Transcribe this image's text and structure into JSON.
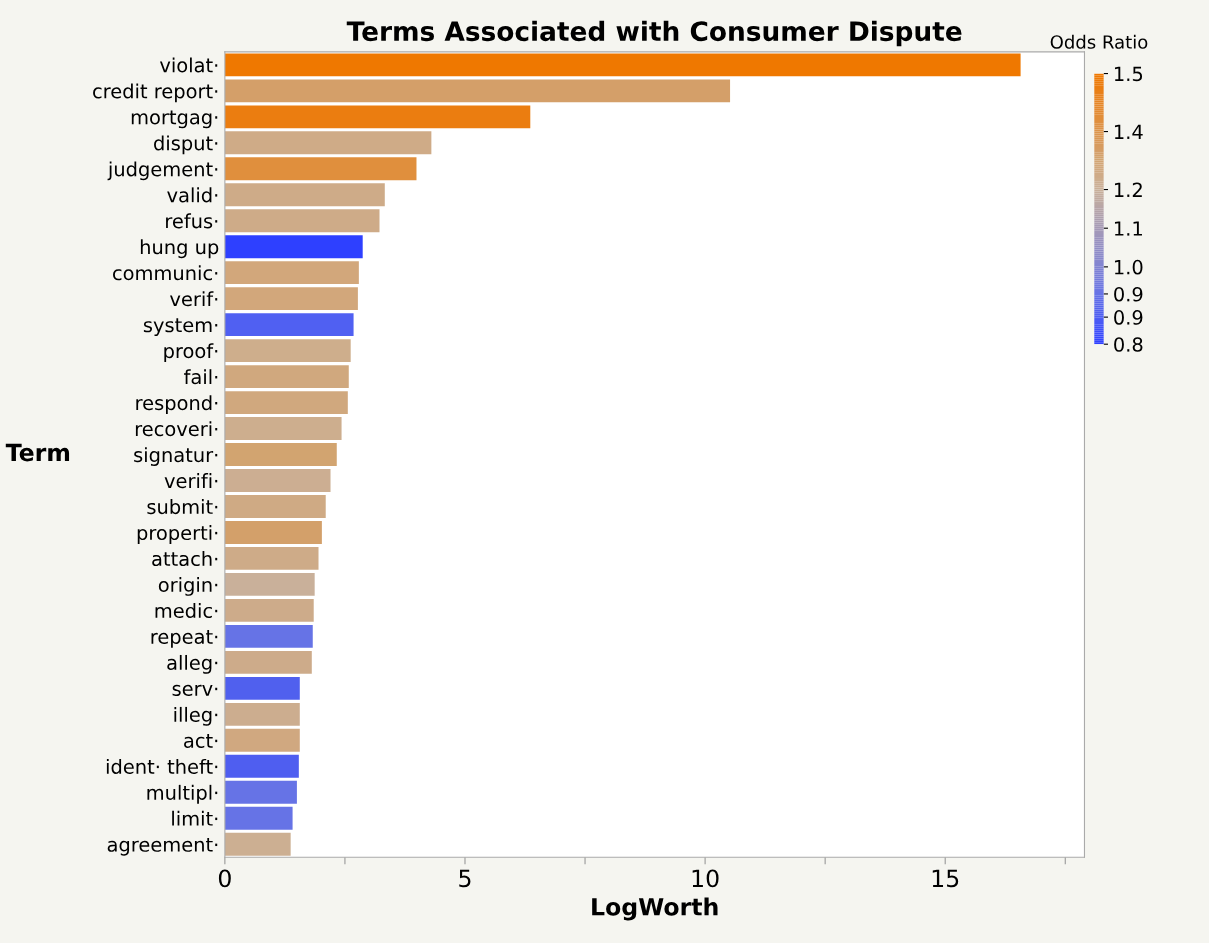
{
  "chart_data": {
    "type": "bar",
    "orientation": "horizontal",
    "title": "Terms Associated with Consumer Dispute",
    "xlabel": "LogWorth",
    "ylabel": "Term",
    "clabel": "Odds Ratio",
    "categories": [
      "violat·",
      "credit report·",
      "mortgag·",
      "disput·",
      "judgement·",
      "valid·",
      "refus·",
      "hung up",
      "communic·",
      "verif·",
      "system·",
      "proof·",
      "fail·",
      "respond·",
      "recoveri·",
      "signatur·",
      "verifi·",
      "submit·",
      "properti·",
      "attach·",
      "origin·",
      "medic·",
      "repeat·",
      "alleg·",
      "serv·",
      "illeg·",
      "act·",
      "ident· theft·",
      "multipl·",
      "limit·",
      "agreement·"
    ],
    "values": [
      16.57,
      10.52,
      6.36,
      4.3,
      3.99,
      3.33,
      3.22,
      2.87,
      2.79,
      2.77,
      2.68,
      2.62,
      2.58,
      2.56,
      2.43,
      2.33,
      2.2,
      2.1,
      2.02,
      1.95,
      1.87,
      1.85,
      1.83,
      1.81,
      1.56,
      1.56,
      1.56,
      1.54,
      1.5,
      1.41,
      1.37
    ],
    "colors": [
      "#ef7800",
      "#d49f69",
      "#eb7d10",
      "#cfab87",
      "#e08f3d",
      "#ceab88",
      "#ceab88",
      "#2e40ff",
      "#d2a77b",
      "#d2a77b",
      "#5060f2",
      "#ceae8c",
      "#d0a87e",
      "#d0a87e",
      "#cdae8e",
      "#d2a470",
      "#ccae92",
      "#cfaa84",
      "#d3a06a",
      "#ceab88",
      "#c9b09a",
      "#cdab8a",
      "#6673e6",
      "#cdab8a",
      "#5060ee",
      "#ccad8f",
      "#d0a880",
      "#4f5ef0",
      "#6673e6",
      "#6673e6",
      "#ccaf92"
    ],
    "clim": [
      0.8,
      1.5
    ],
    "cticks": [
      {
        "value": 0.8,
        "label": "0.8"
      },
      {
        "value": 0.87,
        "label": "0.9"
      },
      {
        "value": 0.93,
        "label": "0.9"
      },
      {
        "value": 1.0,
        "label": "1.0"
      },
      {
        "value": 1.1,
        "label": "1.1"
      },
      {
        "value": 1.2,
        "label": "1.2"
      },
      {
        "value": 1.35,
        "label": "1.4"
      },
      {
        "value": 1.5,
        "label": "1.5"
      }
    ],
    "xlim": [
      0,
      17.9
    ],
    "xticks": [
      0,
      {
        "value": 2.5,
        "label": null
      },
      5,
      {
        "value": 7.5,
        "label": null
      },
      10,
      {
        "value": 12.5,
        "label": null
      },
      15,
      {
        "value": 17.5,
        "label": null
      }
    ],
    "grid": false,
    "legend": false
  }
}
